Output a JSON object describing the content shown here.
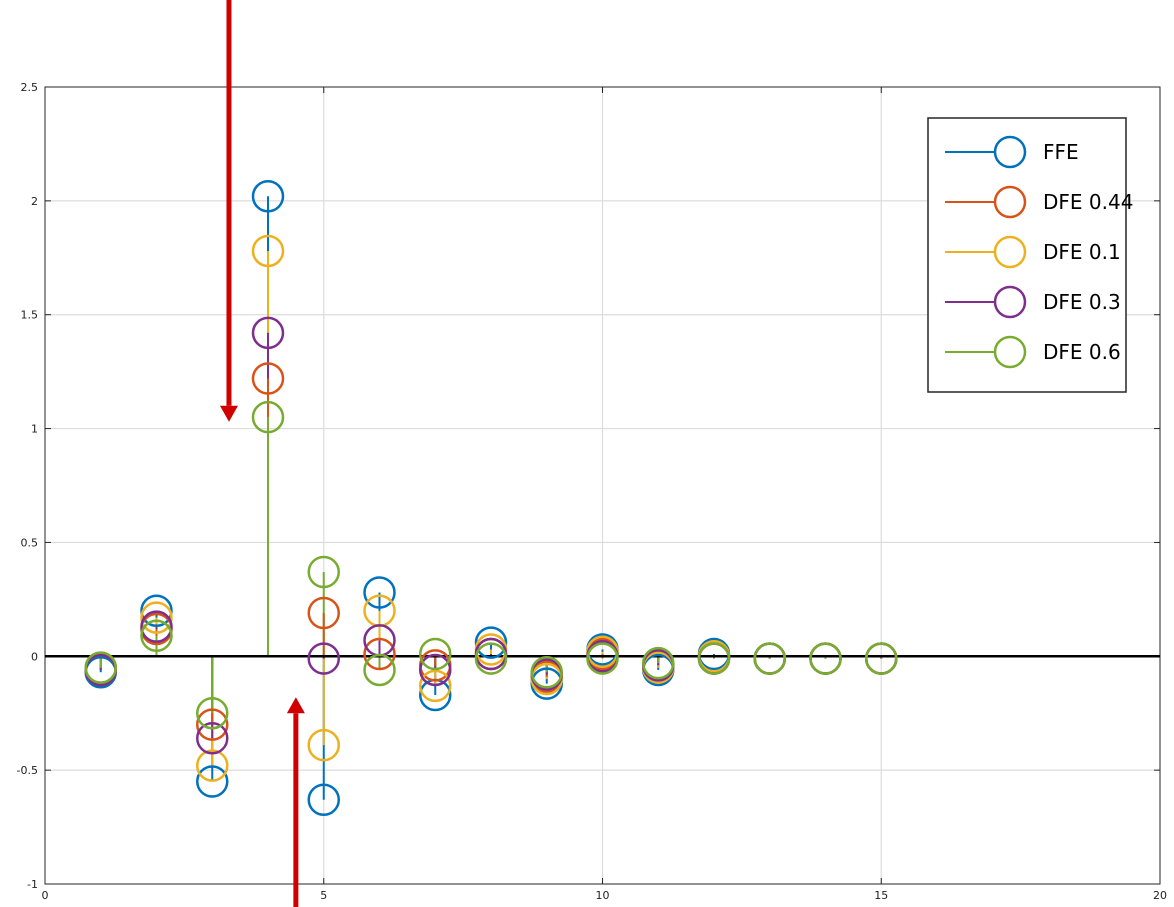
{
  "chart_data": {
    "type": "scatter",
    "style": "stem",
    "title": "",
    "xlabel": "",
    "ylabel": "",
    "xlim": [
      0,
      20
    ],
    "ylim": [
      -1,
      2.5
    ],
    "xticks": [
      0,
      5,
      10,
      15,
      20
    ],
    "yticks": [
      -1,
      -0.5,
      0,
      0.5,
      1,
      1.5,
      2,
      2.5
    ],
    "xtick_labels": [
      "0",
      "5",
      "10",
      "15",
      "20"
    ],
    "ytick_labels": [
      "-1",
      "-0.5",
      "0",
      "0.5",
      "1",
      "1.5",
      "2",
      "2.5"
    ],
    "grid": true,
    "legend_position": "top-right",
    "x": [
      1,
      2,
      3,
      4,
      5,
      6,
      7,
      8,
      9,
      10,
      11,
      12,
      13,
      14,
      15
    ],
    "series": [
      {
        "name": "FFE",
        "color": "#0072BD",
        "values": [
          -0.07,
          0.2,
          -0.55,
          2.02,
          -0.63,
          0.28,
          -0.17,
          0.06,
          -0.12,
          0.03,
          -0.06,
          0.01,
          -0.01,
          -0.01,
          -0.01
        ]
      },
      {
        "name": "DFE 0.44",
        "color": "#D95319",
        "values": [
          -0.06,
          0.12,
          -0.3,
          1.22,
          0.19,
          0.01,
          -0.04,
          0.01,
          -0.09,
          0.01,
          -0.04,
          -0.01,
          -0.01,
          -0.01,
          -0.01
        ]
      },
      {
        "name": "DFE 0.1",
        "color": "#EDB120",
        "values": [
          -0.05,
          0.17,
          -0.48,
          1.78,
          -0.39,
          0.2,
          -0.13,
          0.03,
          -0.1,
          0.02,
          -0.05,
          0.0,
          -0.01,
          -0.01,
          -0.01
        ]
      },
      {
        "name": "DFE 0.3",
        "color": "#7E2F8E",
        "values": [
          -0.06,
          0.13,
          -0.36,
          1.42,
          -0.01,
          0.07,
          -0.06,
          0.01,
          -0.08,
          0.0,
          -0.04,
          -0.01,
          -0.01,
          -0.01,
          -0.01
        ]
      },
      {
        "name": "DFE 0.6",
        "color": "#77AC30",
        "values": [
          -0.05,
          0.09,
          -0.25,
          1.05,
          0.37,
          -0.06,
          0.01,
          -0.01,
          -0.07,
          -0.01,
          -0.03,
          -0.01,
          -0.01,
          -0.01,
          -0.01
        ]
      }
    ],
    "annotations": [
      {
        "type": "arrow",
        "direction": "down",
        "color": "#D00000",
        "from": [
          3.3,
          2.95
        ],
        "to": [
          3.3,
          1.03
        ]
      },
      {
        "type": "arrow",
        "direction": "up",
        "color": "#D00000",
        "from": [
          4.5,
          -1.15
        ],
        "to": [
          4.5,
          -0.18
        ]
      }
    ]
  }
}
